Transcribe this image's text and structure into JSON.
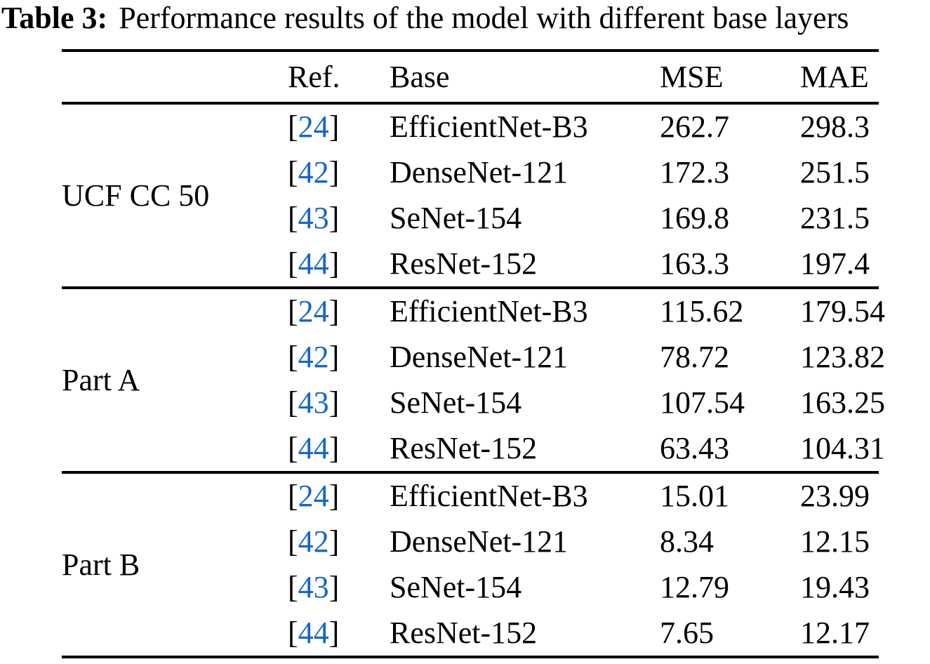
{
  "caption": {
    "label": "Table 3:",
    "text": "Performance results of the model with different base layers"
  },
  "colors": {
    "citation_blue": "#1666C8",
    "text": "#000000",
    "rule": "#000000",
    "background": "#ffffff"
  },
  "table": {
    "bracket_open": "[",
    "bracket_close": "]",
    "headers": {
      "ref": "Ref.",
      "base": "Base",
      "mse": "MSE",
      "mae": "MAE"
    },
    "groups": [
      {
        "dataset": "UCF CC 50",
        "rows": [
          {
            "ref": "24",
            "base": "EfficientNet-B3",
            "mse": "262.7",
            "mae": "298.3"
          },
          {
            "ref": "42",
            "base": "DenseNet-121",
            "mse": "172.3",
            "mae": "251.5"
          },
          {
            "ref": "43",
            "base": "SeNet-154",
            "mse": "169.8",
            "mae": "231.5"
          },
          {
            "ref": "44",
            "base": "ResNet-152",
            "mse": "163.3",
            "mae": "197.4"
          }
        ]
      },
      {
        "dataset": "Part A",
        "rows": [
          {
            "ref": "24",
            "base": "EfficientNet-B3",
            "mse": "115.62",
            "mae": "179.54"
          },
          {
            "ref": "42",
            "base": "DenseNet-121",
            "mse": "78.72",
            "mae": "123.82"
          },
          {
            "ref": "43",
            "base": "SeNet-154",
            "mse": "107.54",
            "mae": "163.25"
          },
          {
            "ref": "44",
            "base": "ResNet-152",
            "mse": "63.43",
            "mae": "104.31"
          }
        ]
      },
      {
        "dataset": "Part B",
        "rows": [
          {
            "ref": "24",
            "base": "EfficientNet-B3",
            "mse": "15.01",
            "mae": "23.99"
          },
          {
            "ref": "42",
            "base": "DenseNet-121",
            "mse": "8.34",
            "mae": "12.15"
          },
          {
            "ref": "43",
            "base": "SeNet-154",
            "mse": "12.79",
            "mae": "19.43"
          },
          {
            "ref": "44",
            "base": "ResNet-152",
            "mse": "7.65",
            "mae": "12.17"
          }
        ]
      }
    ]
  }
}
